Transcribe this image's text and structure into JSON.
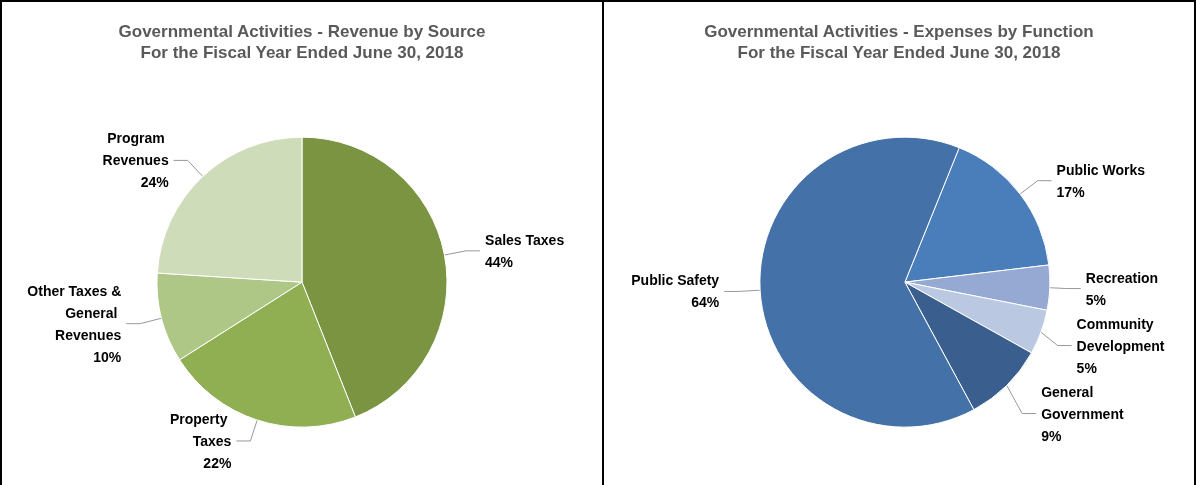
{
  "chart_data": [
    {
      "type": "pie",
      "title": "Governmental Activities - Revenue by Source",
      "subtitle": "For the Fiscal Year Ended June 30, 2018",
      "categories": [
        "Sales Taxes",
        "Property Taxes",
        "Other Taxes & General Revenues",
        "Program Revenues"
      ],
      "values": [
        44,
        22,
        10,
        24
      ],
      "value_labels": [
        "44%",
        "22%",
        "10%",
        "24%"
      ],
      "colors": [
        "#7a9442",
        "#8faf52",
        "#aec686",
        "#cfdcb9"
      ],
      "legend": false
    },
    {
      "type": "pie",
      "title": "Governmental Activities - Expenses by Function",
      "subtitle": "For the Fiscal Year Ended June 30, 2018",
      "categories": [
        "Public Works",
        "Recreation",
        "Community Development",
        "General Government",
        "Public Safety"
      ],
      "values": [
        17,
        5,
        5,
        9,
        64
      ],
      "value_labels": [
        "17%",
        "5%",
        "5%",
        "9%",
        "64%"
      ],
      "colors": [
        "#4a7ebb",
        "#95a9d3",
        "#bac8e2",
        "#3a5f8f",
        "#4472a8"
      ],
      "legend": false
    }
  ]
}
